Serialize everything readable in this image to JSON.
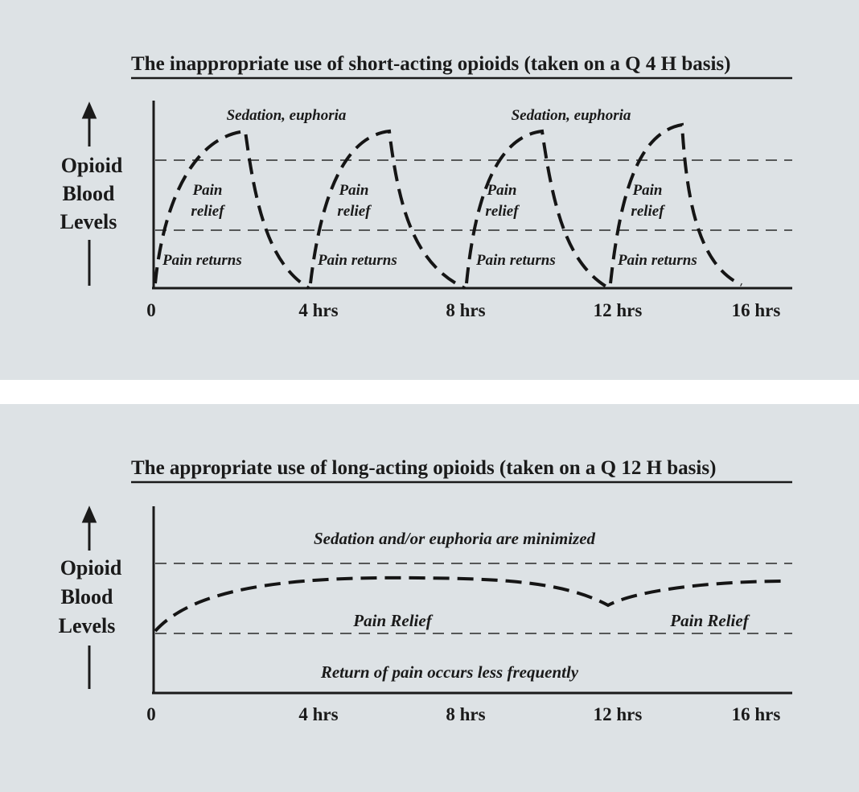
{
  "top": {
    "title": "The inappropriate use of short-acting opioids (taken on a Q 4 H basis)",
    "ylabel": [
      "Opioid",
      "Blood",
      "Levels"
    ],
    "ticks": [
      "0",
      "4 hrs",
      "8 hrs",
      "12 hrs",
      "16 hrs"
    ],
    "sedation_labels": [
      "Sedation, euphoria",
      "Sedation, euphoria"
    ],
    "relief_labels": [
      [
        "Pain",
        "relief"
      ],
      [
        "Pain",
        "relief"
      ],
      [
        "Pain",
        "relief"
      ],
      [
        "Pain",
        "relief"
      ]
    ],
    "returns_labels": [
      "Pain returns",
      "Pain returns",
      "Pain returns",
      "Pain returns"
    ]
  },
  "bottom": {
    "title": "The appropriate use of long-acting opioids (taken on a Q 12 H basis)",
    "ylabel": [
      "Opioid",
      "Blood",
      "Levels"
    ],
    "ticks": [
      "0",
      "4 hrs",
      "8 hrs",
      "12 hrs",
      "16 hrs"
    ],
    "sedation_label": "Sedation and/or euphoria are minimized",
    "relief_labels": [
      "Pain Relief",
      "Pain Relief"
    ],
    "return_label": "Return of pain occurs less frequently"
  },
  "colors": {
    "background": "#dde2e5",
    "ink": "#1a1a1a"
  }
}
